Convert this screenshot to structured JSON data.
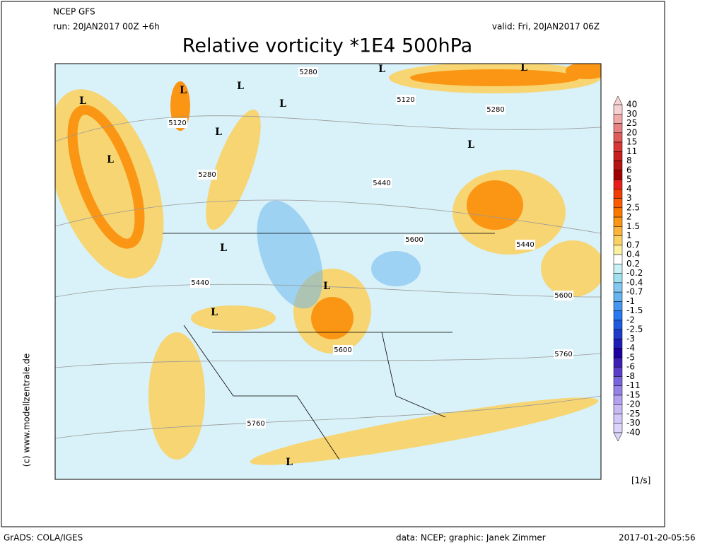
{
  "header": {
    "model": "NCEP GFS",
    "run": "run: 20JAN2017 00Z +6h",
    "valid": "valid: Fri, 20JAN2017 06Z",
    "title": "Relative vorticity *1E4 500hPa"
  },
  "colorbar": {
    "labels": [
      "40",
      "30",
      "25",
      "20",
      "15",
      "11",
      "8",
      "6",
      "5",
      "4",
      "3",
      "2.5",
      "2",
      "1.5",
      "1",
      "0.7",
      "0.4",
      "0.2",
      "-0.2",
      "-0.4",
      "-0.7",
      "-1",
      "-1.5",
      "-2",
      "-2.5",
      "-3",
      "-4",
      "-5",
      "-6",
      "-8",
      "-11",
      "-15",
      "-20",
      "-25",
      "-30",
      "-40"
    ],
    "colors": [
      "#f7d2d2",
      "#f0aaaa",
      "#e88282",
      "#e05a5a",
      "#d83737",
      "#c81e1e",
      "#b41414",
      "#a00000",
      "#e61e1e",
      "#f03c00",
      "#fa5a00",
      "#fa7800",
      "#fa9614",
      "#fab43c",
      "#fad264",
      "#faf0a0",
      "#ffffff",
      "#c8f0f5",
      "#a0e1f0",
      "#82c8f0",
      "#64b4f0",
      "#4696f0",
      "#2878f0",
      "#1e5adc",
      "#1e3cc8",
      "#1e1eb4",
      "#1e00a0",
      "#3c1eb4",
      "#5a3cc8",
      "#7864dc",
      "#9682e6",
      "#b4a0f0",
      "#c8b9f5",
      "#d2c8fa",
      "#dcd4fa"
    ],
    "unit": "[1/s]"
  },
  "map_labels": [
    "L",
    "L",
    "L",
    "L",
    "L",
    "L",
    "L",
    "L",
    "L",
    "L",
    "L",
    "L",
    "L",
    "5280",
    "5120",
    "5120",
    "5280",
    "5280",
    "5440",
    "5600",
    "5440",
    "5440",
    "5600",
    "5600",
    "5760",
    "5760"
  ],
  "side_text": "(c) www.modellzentrale.de",
  "footer": {
    "left": "GrADS: COLA/IGES",
    "center": "data: NCEP; graphic: Janek Zimmer",
    "right": "2017-01-20-05:56"
  }
}
